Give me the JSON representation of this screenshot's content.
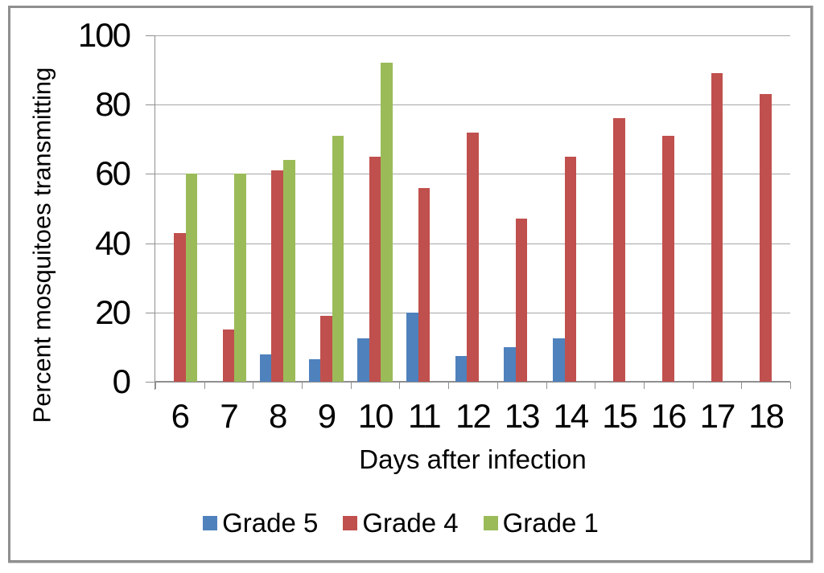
{
  "chart_data": {
    "type": "bar",
    "title": "",
    "xlabel": "Days after infection",
    "ylabel": "Percent mosquitoes transmitting",
    "categories": [
      "6",
      "7",
      "8",
      "9",
      "10",
      "11",
      "12",
      "13",
      "14",
      "15",
      "16",
      "17",
      "18"
    ],
    "series": [
      {
        "name": "Grade 5",
        "color": "#4f81bd",
        "values": [
          null,
          null,
          8,
          6.5,
          12.5,
          20,
          7.5,
          10,
          12.5,
          null,
          null,
          null,
          null
        ]
      },
      {
        "name": "Grade 4",
        "color": "#c0504d",
        "values": [
          43,
          15,
          61,
          19,
          65,
          56,
          72,
          47,
          65,
          76,
          71,
          89,
          83
        ]
      },
      {
        "name": "Grade 1",
        "color": "#9bbb59",
        "values": [
          60,
          60,
          64,
          71,
          92,
          null,
          null,
          null,
          null,
          null,
          null,
          null,
          null
        ]
      }
    ],
    "ylim": [
      0,
      100
    ],
    "yticks": [
      0,
      20,
      40,
      60,
      80,
      100
    ],
    "grid": true,
    "legend_position": "bottom",
    "grid_color": "#a6a6a6",
    "axis_color": "#8f8f8f",
    "frame_border_color": "#8f8f8f"
  }
}
